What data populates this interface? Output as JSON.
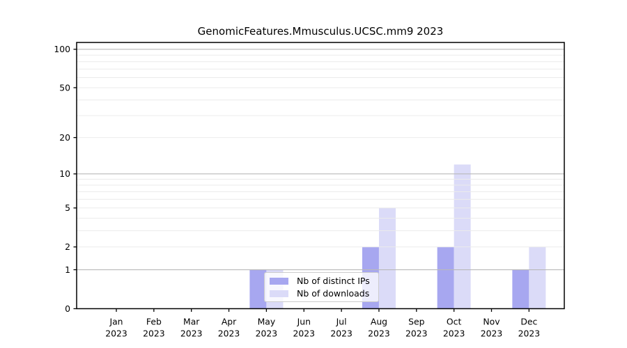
{
  "chart_data": {
    "type": "bar",
    "title": "GenomicFeatures.Mmusculus.UCSC.mm9 2023",
    "categories": [
      "Jan 2023",
      "Feb 2023",
      "Mar 2023",
      "Apr 2023",
      "May 2023",
      "Jun 2023",
      "Jul 2023",
      "Aug 2023",
      "Sep 2023",
      "Oct 2023",
      "Nov 2023",
      "Dec 2023"
    ],
    "series": [
      {
        "name": "Nb of distinct IPs",
        "color": "#a7a7f0",
        "values": [
          0,
          0,
          0,
          0,
          1,
          0,
          0,
          2,
          0,
          2,
          0,
          1
        ]
      },
      {
        "name": "Nb of downloads",
        "color": "#dbdbf8",
        "values": [
          0,
          0,
          0,
          0,
          1,
          0,
          0,
          5,
          0,
          12,
          0,
          2
        ]
      }
    ],
    "xlabel": "",
    "ylabel": "",
    "yscale": "log1p",
    "yticks": [
      0,
      1,
      2,
      5,
      10,
      20,
      50,
      100
    ],
    "ylim": [
      0,
      113
    ],
    "grid": {
      "major": [
        1,
        10,
        100
      ],
      "minor": [
        2,
        3,
        4,
        5,
        6,
        7,
        8,
        9,
        20,
        30,
        40,
        50,
        60,
        70,
        80,
        90
      ],
      "major_color": "#b9b9b9",
      "minor_color": "#ebebeb"
    },
    "legend_position": "inside-bottom-center",
    "axis_color": "#000000",
    "background_color": "#ffffff"
  },
  "legend": {
    "items": [
      {
        "label": "Nb of distinct IPs",
        "color": "#a7a7f0"
      },
      {
        "label": "Nb of downloads",
        "color": "#dbdbf8"
      }
    ]
  }
}
